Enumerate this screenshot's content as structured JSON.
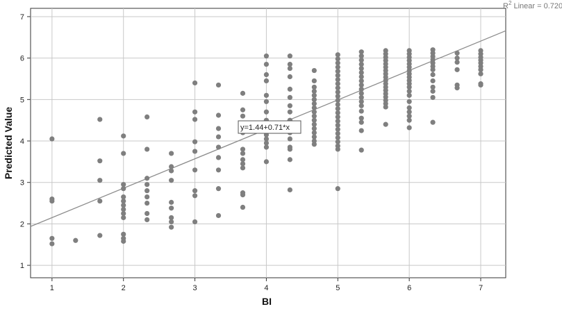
{
  "chart_data": {
    "type": "scatter",
    "title": "",
    "xlabel": "BI",
    "ylabel": "Predicted Value",
    "xlim": [
      0.7,
      7.35
    ],
    "ylim": [
      0.7,
      7.2
    ],
    "xticks": [
      1,
      2,
      3,
      4,
      5,
      6,
      7
    ],
    "yticks": [
      1,
      2,
      3,
      4,
      5,
      6,
      7
    ],
    "grid": true,
    "colors": {
      "points": "#7f7f7f",
      "line": "#8c8c8c",
      "grid": "#c8c8c8"
    },
    "fit_line": {
      "intercept": 1.44,
      "slope": 0.71,
      "equation_label": "y=1.44+0.71*x"
    },
    "r2_label": {
      "prefix": "R",
      "superscript": "2",
      "suffix": " Linear = 0.720"
    },
    "points": [
      [
        1,
        4.05
      ],
      [
        1,
        2.6
      ],
      [
        1,
        2.55
      ],
      [
        1,
        1.65
      ],
      [
        1,
        1.52
      ],
      [
        1.33,
        1.6
      ],
      [
        1.67,
        4.52
      ],
      [
        1.67,
        3.52
      ],
      [
        1.67,
        3.05
      ],
      [
        1.67,
        2.55
      ],
      [
        1.67,
        1.72
      ],
      [
        2,
        4.12
      ],
      [
        2,
        3.7
      ],
      [
        2,
        2.95
      ],
      [
        2,
        2.85
      ],
      [
        2,
        2.65
      ],
      [
        2,
        2.55
      ],
      [
        2,
        2.45
      ],
      [
        2,
        2.35
      ],
      [
        2,
        2.25
      ],
      [
        2,
        2.15
      ],
      [
        2,
        1.75
      ],
      [
        2,
        1.65
      ],
      [
        2,
        1.58
      ],
      [
        2.33,
        4.58
      ],
      [
        2.33,
        3.8
      ],
      [
        2.33,
        3.1
      ],
      [
        2.33,
        2.95
      ],
      [
        2.33,
        2.8
      ],
      [
        2.33,
        2.65
      ],
      [
        2.33,
        2.5
      ],
      [
        2.33,
        2.25
      ],
      [
        2.33,
        2.1
      ],
      [
        2.67,
        3.7
      ],
      [
        2.67,
        3.38
      ],
      [
        2.67,
        3.28
      ],
      [
        2.67,
        3.05
      ],
      [
        2.67,
        2.52
      ],
      [
        2.67,
        2.38
      ],
      [
        2.67,
        2.15
      ],
      [
        2.67,
        2.05
      ],
      [
        2.67,
        1.92
      ],
      [
        3,
        5.4
      ],
      [
        3,
        4.7
      ],
      [
        3,
        4.52
      ],
      [
        3,
        3.98
      ],
      [
        3,
        3.75
      ],
      [
        3,
        3.3
      ],
      [
        3,
        2.8
      ],
      [
        3,
        2.68
      ],
      [
        3,
        2.05
      ],
      [
        3.33,
        5.35
      ],
      [
        3.33,
        4.62
      ],
      [
        3.33,
        4.3
      ],
      [
        3.33,
        4.1
      ],
      [
        3.33,
        3.85
      ],
      [
        3.33,
        3.6
      ],
      [
        3.33,
        3.3
      ],
      [
        3.33,
        2.85
      ],
      [
        3.33,
        2.2
      ],
      [
        3.67,
        5.15
      ],
      [
        3.67,
        4.75
      ],
      [
        3.67,
        4.6
      ],
      [
        3.67,
        4.4
      ],
      [
        3.67,
        4.2
      ],
      [
        3.67,
        3.8
      ],
      [
        3.67,
        3.7
      ],
      [
        3.67,
        3.55
      ],
      [
        3.67,
        3.45
      ],
      [
        3.67,
        3.35
      ],
      [
        3.67,
        2.75
      ],
      [
        3.67,
        2.7
      ],
      [
        3.67,
        2.4
      ],
      [
        4,
        6.05
      ],
      [
        4,
        5.85
      ],
      [
        4,
        5.6
      ],
      [
        4,
        5.45
      ],
      [
        4,
        5.1
      ],
      [
        4,
        4.95
      ],
      [
        4,
        4.7
      ],
      [
        4,
        4.5
      ],
      [
        4,
        4.3
      ],
      [
        4,
        4.15
      ],
      [
        4,
        4.05
      ],
      [
        4,
        3.95
      ],
      [
        4,
        3.85
      ],
      [
        4,
        3.5
      ],
      [
        4.33,
        6.05
      ],
      [
        4.33,
        5.85
      ],
      [
        4.33,
        5.75
      ],
      [
        4.33,
        5.55
      ],
      [
        4.33,
        5.25
      ],
      [
        4.33,
        5.05
      ],
      [
        4.33,
        4.85
      ],
      [
        4.33,
        4.7
      ],
      [
        4.33,
        4.5
      ],
      [
        4.33,
        4.35
      ],
      [
        4.33,
        4.2
      ],
      [
        4.33,
        4.05
      ],
      [
        4.33,
        3.85
      ],
      [
        4.33,
        3.8
      ],
      [
        4.33,
        3.55
      ],
      [
        4.33,
        2.82
      ],
      [
        4.67,
        5.7
      ],
      [
        4.67,
        5.45
      ],
      [
        4.67,
        5.3
      ],
      [
        4.67,
        5.2
      ],
      [
        4.67,
        5.1
      ],
      [
        4.67,
        5.0
      ],
      [
        4.67,
        4.9
      ],
      [
        4.67,
        4.8
      ],
      [
        4.67,
        4.7
      ],
      [
        4.67,
        4.6
      ],
      [
        4.67,
        4.5
      ],
      [
        4.67,
        4.4
      ],
      [
        4.67,
        4.3
      ],
      [
        4.67,
        4.2
      ],
      [
        4.67,
        4.1
      ],
      [
        4.67,
        4.0
      ],
      [
        4.67,
        3.92
      ],
      [
        5,
        6.08
      ],
      [
        5,
        5.98
      ],
      [
        5,
        5.88
      ],
      [
        5,
        5.78
      ],
      [
        5,
        5.68
      ],
      [
        5,
        5.58
      ],
      [
        5,
        5.48
      ],
      [
        5,
        5.38
      ],
      [
        5,
        5.28
      ],
      [
        5,
        5.18
      ],
      [
        5,
        5.08
      ],
      [
        5,
        4.98
      ],
      [
        5,
        4.88
      ],
      [
        5,
        4.78
      ],
      [
        5,
        4.68
      ],
      [
        5,
        4.58
      ],
      [
        5,
        4.48
      ],
      [
        5,
        4.38
      ],
      [
        5,
        4.28
      ],
      [
        5,
        4.18
      ],
      [
        5,
        4.08
      ],
      [
        5,
        3.98
      ],
      [
        5,
        3.88
      ],
      [
        5,
        3.8
      ],
      [
        5,
        2.85
      ],
      [
        5.33,
        6.15
      ],
      [
        5.33,
        6.05
      ],
      [
        5.33,
        5.95
      ],
      [
        5.33,
        5.85
      ],
      [
        5.33,
        5.75
      ],
      [
        5.33,
        5.65
      ],
      [
        5.33,
        5.55
      ],
      [
        5.33,
        5.45
      ],
      [
        5.33,
        5.35
      ],
      [
        5.33,
        5.25
      ],
      [
        5.33,
        5.15
      ],
      [
        5.33,
        5.05
      ],
      [
        5.33,
        4.95
      ],
      [
        5.33,
        4.85
      ],
      [
        5.33,
        4.72
      ],
      [
        5.33,
        4.55
      ],
      [
        5.33,
        4.45
      ],
      [
        5.33,
        4.25
      ],
      [
        5.33,
        3.78
      ],
      [
        5.67,
        6.18
      ],
      [
        5.67,
        6.1
      ],
      [
        5.67,
        6.02
      ],
      [
        5.67,
        5.94
      ],
      [
        5.67,
        5.86
      ],
      [
        5.67,
        5.78
      ],
      [
        5.67,
        5.7
      ],
      [
        5.67,
        5.62
      ],
      [
        5.67,
        5.54
      ],
      [
        5.67,
        5.46
      ],
      [
        5.67,
        5.38
      ],
      [
        5.67,
        5.3
      ],
      [
        5.67,
        5.22
      ],
      [
        5.67,
        5.14
      ],
      [
        5.67,
        5.06
      ],
      [
        5.67,
        4.98
      ],
      [
        5.67,
        4.9
      ],
      [
        5.67,
        4.82
      ],
      [
        5.67,
        4.4
      ],
      [
        6,
        6.18
      ],
      [
        6,
        6.1
      ],
      [
        6,
        6.02
      ],
      [
        6,
        5.94
      ],
      [
        6,
        5.86
      ],
      [
        6,
        5.78
      ],
      [
        6,
        5.7
      ],
      [
        6,
        5.62
      ],
      [
        6,
        5.54
      ],
      [
        6,
        5.46
      ],
      [
        6,
        5.38
      ],
      [
        6,
        5.3
      ],
      [
        6,
        5.2
      ],
      [
        6,
        5.1
      ],
      [
        6,
        4.95
      ],
      [
        6,
        4.8
      ],
      [
        6,
        4.7
      ],
      [
        6,
        4.6
      ],
      [
        6,
        4.5
      ],
      [
        6,
        4.32
      ],
      [
        6.33,
        6.2
      ],
      [
        6.33,
        6.12
      ],
      [
        6.33,
        6.04
      ],
      [
        6.33,
        5.96
      ],
      [
        6.33,
        5.88
      ],
      [
        6.33,
        5.8
      ],
      [
        6.33,
        5.72
      ],
      [
        6.33,
        5.6
      ],
      [
        6.33,
        5.45
      ],
      [
        6.33,
        5.3
      ],
      [
        6.33,
        5.2
      ],
      [
        6.33,
        5.05
      ],
      [
        6.33,
        4.45
      ],
      [
        6.67,
        6.12
      ],
      [
        6.67,
        6.0
      ],
      [
        6.67,
        5.9
      ],
      [
        6.67,
        5.72
      ],
      [
        6.67,
        5.35
      ],
      [
        6.67,
        5.28
      ],
      [
        7,
        6.18
      ],
      [
        7,
        6.1
      ],
      [
        7,
        6.02
      ],
      [
        7,
        5.95
      ],
      [
        7,
        5.88
      ],
      [
        7,
        5.8
      ],
      [
        7,
        5.72
      ],
      [
        7,
        5.62
      ],
      [
        7,
        5.38
      ],
      [
        7,
        5.35
      ]
    ]
  }
}
